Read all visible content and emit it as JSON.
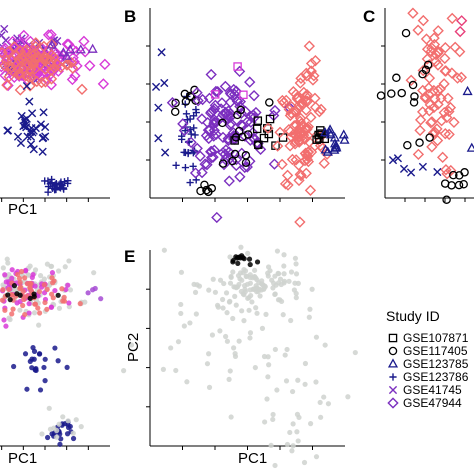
{
  "colors": {
    "black": "#000000",
    "navy": "#1a1a8c",
    "purple": "#7b2fbf",
    "magenta": "#d83bd8",
    "salmon": "#f26e6e",
    "pink": "#e8407a",
    "grey": "#cfd2cf",
    "purple_light": "#a64bd3",
    "salmon_light": "#f4937a"
  },
  "legend": {
    "title": "Study ID",
    "items": [
      {
        "label": "GSE107871",
        "marker": "square",
        "color": "#000000"
      },
      {
        "label": "GSE117405",
        "marker": "circle",
        "color": "#000000"
      },
      {
        "label": "GSE123785",
        "marker": "triangle",
        "color": "#1a1a8c"
      },
      {
        "label": "GSE123786",
        "marker": "plus",
        "color": "#1a1a8c"
      },
      {
        "label": "GSE41745",
        "marker": "x",
        "color": "#7b2fbf"
      },
      {
        "label": "GSE47944",
        "marker": "diamond",
        "color": "#7b2fbf"
      }
    ]
  },
  "chart_data": [
    {
      "panel": "A",
      "type": "scatter",
      "letter": "",
      "xlabel": "PC1",
      "ylabel": "",
      "clusters": [
        {
          "series": "GSE117405",
          "marker": "circle",
          "color": "#000000",
          "cx": 0.05,
          "cy": 0.92,
          "sx": 0.08,
          "sy": 0.03,
          "n": 35,
          "filled": true
        },
        {
          "series": "GSE41745",
          "marker": "x",
          "color": "#7b2fbf",
          "cx": 0.3,
          "cy": 0.74,
          "sx": 0.18,
          "sy": 0.06,
          "n": 90
        },
        {
          "series": "GSE47944",
          "marker": "diamond",
          "color": "#d83bd8",
          "cx": 0.35,
          "cy": 0.72,
          "sx": 0.22,
          "sy": 0.06,
          "n": 140
        },
        {
          "series": "GSE47944",
          "marker": "diamond",
          "color": "#f26e6e",
          "cx": 0.38,
          "cy": 0.7,
          "sx": 0.18,
          "sy": 0.05,
          "n": 80
        },
        {
          "series": "GSE123785",
          "marker": "triangle",
          "color": "#7b2fbf",
          "cx": 0.72,
          "cy": 0.78,
          "sx": 0.12,
          "sy": 0.03,
          "n": 6
        },
        {
          "series": "GSE123786",
          "marker": "x",
          "color": "#1a1a8c",
          "cx": 0.4,
          "cy": 0.36,
          "sx": 0.09,
          "sy": 0.07,
          "n": 30
        },
        {
          "series": "GSE123786",
          "marker": "plus",
          "color": "#1a1a8c",
          "cx": 0.58,
          "cy": 0.06,
          "sx": 0.06,
          "sy": 0.02,
          "n": 25
        }
      ]
    },
    {
      "panel": "B",
      "type": "scatter",
      "letter": "B",
      "xlabel": "",
      "ylabel": "",
      "clusters": [
        {
          "series": "GSE123786",
          "marker": "plus",
          "color": "#1a1a8c",
          "cx": 0.2,
          "cy": 0.28,
          "sx": 0.025,
          "sy": 0.12,
          "n": 30
        },
        {
          "series": "GSE41745",
          "marker": "x",
          "color": "#1a1a8c",
          "cx": 0.05,
          "cy": 0.4,
          "sx": 0.03,
          "sy": 0.15,
          "n": 6
        },
        {
          "series": "GSE117405",
          "marker": "circle",
          "color": "#000000",
          "cx": 0.22,
          "cy": 0.53,
          "sx": 0.04,
          "sy": 0.03,
          "n": 8
        },
        {
          "series": "GSE47944",
          "marker": "diamond",
          "color": "#7b2fbf",
          "cx": 0.4,
          "cy": 0.38,
          "sx": 0.1,
          "sy": 0.12,
          "n": 120
        },
        {
          "series": "GSE117405",
          "marker": "circle",
          "color": "#000000",
          "cx": 0.45,
          "cy": 0.3,
          "sx": 0.08,
          "sy": 0.1,
          "n": 14
        },
        {
          "series": "GSE107871",
          "marker": "square",
          "color": "#000000",
          "cx": 0.58,
          "cy": 0.3,
          "sx": 0.07,
          "sy": 0.07,
          "n": 10
        },
        {
          "series": "GSE47944",
          "marker": "diamond",
          "color": "#f26e6e",
          "cx": 0.78,
          "cy": 0.33,
          "sx": 0.06,
          "sy": 0.16,
          "n": 90
        },
        {
          "series": "GSE47944",
          "marker": "diamond",
          "color": "#f26e6e",
          "cx": 0.8,
          "cy": 0.62,
          "sx": 0.03,
          "sy": 0.1,
          "n": 15
        },
        {
          "series": "GSE107871",
          "marker": "square",
          "color": "#000000",
          "cx": 0.88,
          "cy": 0.34,
          "sx": 0.015,
          "sy": 0.02,
          "n": 6
        },
        {
          "series": "GSE123785",
          "marker": "triangle",
          "color": "#1a1a8c",
          "cx": 0.95,
          "cy": 0.3,
          "sx": 0.02,
          "sy": 0.04,
          "n": 14
        },
        {
          "series": "GSE41745",
          "marker": "square",
          "color": "#d83bd8",
          "cx": 0.45,
          "cy": 0.64,
          "sx": 0.08,
          "sy": 0.05,
          "n": 3
        },
        {
          "series": "GSE117405",
          "marker": "circle",
          "color": "#000000",
          "cx": 0.28,
          "cy": 0.06,
          "sx": 0.02,
          "sy": 0.02,
          "n": 6
        }
      ]
    },
    {
      "panel": "C",
      "type": "scatter",
      "letter": "C",
      "xlabel": "",
      "ylabel": "",
      "clusters": [
        {
          "series": "GSE47944",
          "marker": "diamond",
          "color": "#f26e6e",
          "cx": 0.4,
          "cy": 0.55,
          "sx": 0.1,
          "sy": 0.22,
          "n": 70
        },
        {
          "series": "GSE117405",
          "marker": "circle",
          "color": "#000000",
          "cx": 0.2,
          "cy": 0.55,
          "sx": 0.12,
          "sy": 0.18,
          "n": 14
        },
        {
          "series": "GSE123785",
          "marker": "triangle",
          "color": "#1a1a8c",
          "cx": 0.85,
          "cy": 0.45,
          "sx": 0.1,
          "sy": 0.2,
          "n": 10
        },
        {
          "series": "GSE41745",
          "marker": "x",
          "color": "#1a1a8c",
          "cx": 0.3,
          "cy": 0.18,
          "sx": 0.12,
          "sy": 0.05,
          "n": 6
        },
        {
          "series": "GSE117405",
          "marker": "circle",
          "color": "#000000",
          "cx": 0.55,
          "cy": 0.08,
          "sx": 0.08,
          "sy": 0.04,
          "n": 8
        },
        {
          "series": "GSE47944",
          "marker": "diamond",
          "color": "#e8407a",
          "cx": 0.8,
          "cy": 0.85,
          "sx": 0.08,
          "sy": 0.06,
          "n": 8
        },
        {
          "series": "GSE107871",
          "marker": "square",
          "color": "#d83bd8",
          "cx": 0.88,
          "cy": 0.92,
          "sx": 0.05,
          "sy": 0.02,
          "n": 4
        }
      ]
    },
    {
      "panel": "D",
      "type": "scatter",
      "letter": "",
      "xlabel": "PC1",
      "ylabel": "",
      "clusters": [
        {
          "series": "GSE117405",
          "marker": "dot",
          "color": "#000000",
          "cx": 0.05,
          "cy": 0.95,
          "sx": 0.05,
          "sy": 0.015,
          "n": 20
        },
        {
          "series": "GSE47944",
          "marker": "dot",
          "color": "#cfd2cf",
          "cx": 0.35,
          "cy": 0.8,
          "sx": 0.2,
          "sy": 0.07,
          "n": 120
        },
        {
          "series": "GSE47944",
          "marker": "dot",
          "color": "#d83bd8",
          "cx": 0.3,
          "cy": 0.8,
          "sx": 0.22,
          "sy": 0.06,
          "n": 80
        },
        {
          "series": "GSE47944",
          "marker": "dot",
          "color": "#f26e6e",
          "cx": 0.38,
          "cy": 0.78,
          "sx": 0.15,
          "sy": 0.05,
          "n": 60
        },
        {
          "series": "GSE117405",
          "marker": "dot",
          "color": "#000000",
          "cx": 0.3,
          "cy": 0.77,
          "sx": 0.15,
          "sy": 0.02,
          "n": 12
        },
        {
          "series": "GSE41745",
          "marker": "dot",
          "color": "#a64bd3",
          "cx": 0.85,
          "cy": 0.76,
          "sx": 0.06,
          "sy": 0.04,
          "n": 4
        },
        {
          "series": "GSE123786",
          "marker": "dot",
          "color": "#1a1a8c",
          "cx": 0.45,
          "cy": 0.42,
          "sx": 0.08,
          "sy": 0.06,
          "n": 22
        },
        {
          "series": "GSE123786",
          "marker": "dot",
          "color": "#1a1a8c",
          "cx": 0.62,
          "cy": 0.08,
          "sx": 0.05,
          "sy": 0.03,
          "n": 20
        },
        {
          "series": "GSE123786",
          "marker": "dot",
          "color": "#cfd2cf",
          "cx": 0.62,
          "cy": 0.08,
          "sx": 0.08,
          "sy": 0.05,
          "n": 12
        }
      ]
    },
    {
      "panel": "E",
      "type": "scatter",
      "letter": "E",
      "xlabel": "PC1",
      "ylabel": "PC2",
      "clusters": [
        {
          "series": "GSE117405",
          "marker": "dot",
          "color": "#000000",
          "cx": 0.47,
          "cy": 0.95,
          "sx": 0.03,
          "sy": 0.015,
          "n": 14
        },
        {
          "series": "GSE47944",
          "marker": "dot",
          "color": "#cfd2cf",
          "cx": 0.55,
          "cy": 0.82,
          "sx": 0.12,
          "sy": 0.06,
          "n": 110
        },
        {
          "series": "GSE47944",
          "marker": "dot",
          "color": "#cfd2cf",
          "cx": 0.4,
          "cy": 0.55,
          "sx": 0.22,
          "sy": 0.18,
          "n": 60
        },
        {
          "series": "GSE47944",
          "marker": "dot",
          "color": "#cfd2cf",
          "cx": 0.75,
          "cy": 0.15,
          "sx": 0.12,
          "sy": 0.12,
          "n": 30
        }
      ]
    }
  ]
}
